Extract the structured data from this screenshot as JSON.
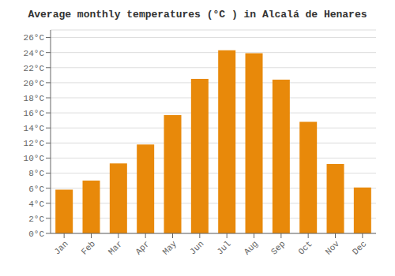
{
  "chart_data": {
    "type": "bar",
    "title": "Average monthly temperatures (°C ) in Alcalá de Henares",
    "categories": [
      "Jan",
      "Feb",
      "Mar",
      "Apr",
      "May",
      "Jun",
      "Jul",
      "Aug",
      "Sep",
      "Oct",
      "Nov",
      "Dec"
    ],
    "values": [
      5.8,
      7.0,
      9.3,
      11.8,
      15.7,
      20.5,
      24.3,
      23.9,
      20.4,
      14.8,
      9.2,
      6.1
    ],
    "color": "#E8890A",
    "ylim": [
      0,
      27
    ],
    "yticks": [
      {
        "value": 0,
        "label": "0°C"
      },
      {
        "value": 2,
        "label": "2°C"
      },
      {
        "value": 4,
        "label": "4°C"
      },
      {
        "value": 6,
        "label": "6°C"
      },
      {
        "value": 8,
        "label": "8°C"
      },
      {
        "value": 10,
        "label": "10°C"
      },
      {
        "value": 12,
        "label": "12°C"
      },
      {
        "value": 14,
        "label": "14°C"
      },
      {
        "value": 16,
        "label": "16°C"
      },
      {
        "value": 18,
        "label": "18°C"
      },
      {
        "value": 20,
        "label": "20°C"
      },
      {
        "value": 22,
        "label": "22°C"
      },
      {
        "value": 24,
        "label": "24°C"
      },
      {
        "value": 26,
        "label": "26°C"
      }
    ],
    "grid": true
  }
}
